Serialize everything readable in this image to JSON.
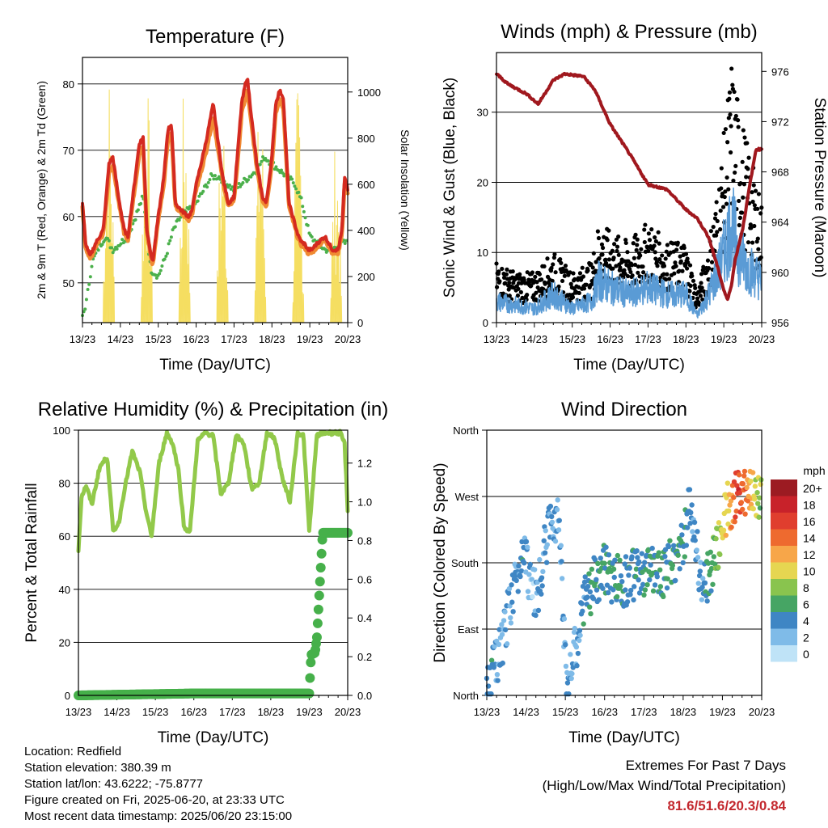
{
  "x_ticks": [
    "13/23",
    "14/23",
    "15/23",
    "16/23",
    "17/23",
    "18/23",
    "19/23",
    "20/23"
  ],
  "chart_data": [
    {
      "id": "temperature",
      "type": "line",
      "title": "Temperature (F)",
      "xlabel": "Time (Day/UTC)",
      "ylabel": "2m & 9m T (Red, Orange) & 2m Td (Green)",
      "y2label": "Solar Insolation (Yellow)",
      "ylim": [
        44,
        84
      ],
      "yticks": [
        50,
        60,
        70,
        80
      ],
      "y2lim": [
        0,
        1150
      ],
      "y2ticks": [
        0,
        200,
        400,
        600,
        800,
        1000
      ],
      "colors": {
        "t2m": "#d42a20",
        "t9m": "#f08a33",
        "td": "#4bb04b",
        "solar": "#f5de61"
      },
      "series": [
        {
          "key": "t2m",
          "x": [
            0,
            0.08,
            0.2,
            0.35,
            0.55,
            0.7,
            0.8,
            0.95,
            1.1,
            1.2,
            1.35,
            1.5,
            1.6,
            1.7,
            1.85,
            2.0,
            2.15,
            2.25,
            2.35,
            2.45,
            2.6,
            2.8,
            2.9,
            2.97,
            3.05,
            3.25,
            3.45,
            3.7,
            3.85,
            4.0,
            4.1,
            4.2,
            4.3,
            4.35,
            4.5,
            4.6,
            4.75,
            4.85,
            5.0,
            5.1,
            5.2,
            5.3,
            5.45,
            5.55,
            5.7,
            5.8,
            5.85,
            5.95,
            6.05,
            6.2,
            6.4,
            6.6,
            6.75,
            6.85,
            6.92,
            7.0
          ],
          "values": [
            62,
            56,
            54,
            56,
            58,
            68,
            69,
            63,
            58,
            57,
            64,
            71,
            72,
            58,
            53,
            60,
            66,
            73,
            74,
            62,
            61,
            60,
            61,
            64,
            66,
            71,
            77,
            66,
            62,
            63,
            70,
            77,
            80,
            81,
            73,
            68,
            63,
            62,
            69,
            77,
            79,
            78,
            62,
            60,
            57,
            56,
            56,
            55,
            55,
            56,
            57,
            55,
            55,
            58,
            66,
            64
          ]
        },
        {
          "key": "t9m",
          "x": [
            0,
            0.08,
            0.2,
            0.35,
            0.55,
            0.7,
            0.8,
            0.95,
            1.1,
            1.2,
            1.35,
            1.5,
            1.6,
            1.7,
            1.85,
            2.0,
            2.15,
            2.25,
            2.35,
            2.45,
            2.6,
            2.8,
            2.9,
            2.97,
            3.05,
            3.25,
            3.45,
            3.7,
            3.85,
            4.0,
            4.1,
            4.2,
            4.3,
            4.35,
            4.5,
            4.6,
            4.75,
            4.85,
            5.0,
            5.1,
            5.2,
            5.3,
            5.45,
            5.55,
            5.7,
            5.8,
            5.85,
            5.95,
            6.05,
            6.2,
            6.4,
            6.6,
            6.75,
            6.85,
            6.92,
            7.0
          ],
          "values": [
            61.5,
            55.5,
            53.5,
            55.5,
            57.5,
            66.5,
            67.5,
            62.5,
            57.5,
            56.5,
            63,
            69.5,
            70.5,
            57.5,
            52.5,
            59.5,
            65,
            71.5,
            72.5,
            61.5,
            60.5,
            59.5,
            60.5,
            63.5,
            65,
            69.5,
            75,
            65.5,
            61.5,
            62.5,
            68.5,
            75.5,
            78,
            79,
            72,
            67.5,
            62.5,
            61.5,
            68,
            75.5,
            77.5,
            76.5,
            61.5,
            59.5,
            56.5,
            55.5,
            55.5,
            54.5,
            54.5,
            55.5,
            56.5,
            54.5,
            54.5,
            57.5,
            65,
            63.5
          ]
        },
        {
          "key": "td",
          "x": [
            0,
            0.1,
            0.25,
            0.4,
            0.6,
            0.8,
            1.0,
            1.2,
            1.4,
            1.6,
            1.8,
            2.0,
            2.2,
            2.4,
            2.6,
            2.8,
            3.0,
            3.2,
            3.4,
            3.6,
            3.8,
            4.0,
            4.2,
            4.4,
            4.6,
            4.8,
            5.0,
            5.2,
            5.4,
            5.6,
            5.8,
            6.0,
            6.2,
            6.4,
            6.6,
            6.8,
            7.0
          ],
          "values": [
            45,
            47,
            53,
            55,
            57,
            55,
            56,
            57,
            60,
            63,
            52,
            51,
            54,
            58,
            60,
            61,
            62,
            64,
            66,
            66,
            65,
            64,
            65,
            66,
            67,
            69,
            68,
            67,
            66,
            65,
            62,
            57,
            56,
            55,
            55,
            56,
            56
          ]
        },
        {
          "key": "solar",
          "days": [
            0,
            1,
            2,
            3,
            4,
            5,
            6
          ],
          "peaks": [
            1120,
            1090,
            1050,
            1000,
            1040,
            1060,
            820
          ]
        }
      ]
    },
    {
      "id": "winds",
      "type": "line",
      "title": "Winds (mph) & Pressure (mb)",
      "xlabel": "Time (Day/UTC)",
      "ylabel": "Sonic Wind & Gust (Blue, Black)",
      "y2label": "Station Pressure (Maroon)",
      "ylim": [
        0,
        38.5
      ],
      "yticks": [
        0,
        10,
        20,
        30
      ],
      "y2lim": [
        956,
        977.5
      ],
      "y2ticks": [
        956,
        960,
        964,
        968,
        972,
        976
      ],
      "colors": {
        "wind": "#5a9bd5",
        "gust": "#000000",
        "pressure": "#a0181e"
      },
      "series": [
        {
          "key": "wind",
          "x": [
            0,
            0.5,
            1.0,
            1.5,
            2.0,
            2.5,
            2.7,
            3.0,
            3.5,
            4.0,
            4.5,
            5.0,
            5.3,
            5.6,
            5.9,
            6.2,
            6.4,
            6.6,
            7.0
          ],
          "values": [
            3,
            2.5,
            2,
            4,
            2,
            3,
            6,
            5,
            4,
            5,
            4,
            4,
            1,
            4,
            8,
            14,
            10,
            8,
            6
          ]
        },
        {
          "key": "gust",
          "x": [
            0,
            0.5,
            1.0,
            1.5,
            2.0,
            2.5,
            2.7,
            3.0,
            3.5,
            4.0,
            4.5,
            5.0,
            5.3,
            5.6,
            5.9,
            6.2,
            6.4,
            6.6,
            7.0
          ],
          "values": [
            6,
            5,
            5,
            7,
            5,
            6,
            10,
            9,
            8,
            10,
            8,
            8,
            3,
            8,
            15,
            26,
            22,
            18,
            12
          ]
        },
        {
          "key": "pressure",
          "x": [
            0,
            0.3,
            0.8,
            1.1,
            1.5,
            1.8,
            2.3,
            2.6,
            3.0,
            3.5,
            4.0,
            4.5,
            5.0,
            5.3,
            5.6,
            5.8,
            6.0,
            6.1,
            6.2,
            6.3,
            6.5,
            6.7,
            6.85,
            7.0
          ],
          "values": [
            975.8,
            975,
            974.2,
            973.4,
            975.3,
            975.8,
            975.6,
            974.5,
            971.8,
            969.5,
            967,
            966.6,
            965,
            964.3,
            962.8,
            960.8,
            958.6,
            957.8,
            959,
            961,
            963.5,
            967.2,
            969.8,
            969.8
          ]
        }
      ]
    },
    {
      "id": "humidity",
      "type": "line",
      "title": "Relative Humidity (%) & Precipitation (in)",
      "xlabel": "Time (Day/UTC)",
      "ylabel": "Percent & Total Rainfall",
      "ylim": [
        0,
        100
      ],
      "yticks": [
        0,
        20,
        40,
        60,
        80,
        100
      ],
      "y2lim": [
        0,
        1.37
      ],
      "y2ticks": [
        0.0,
        0.2,
        0.4,
        0.6,
        0.8,
        1.0,
        1.2
      ],
      "colors": {
        "rh": "#92c94a",
        "precip": "#46b04a"
      },
      "series": [
        {
          "key": "rh",
          "x": [
            0,
            0.08,
            0.2,
            0.35,
            0.55,
            0.75,
            0.9,
            1.05,
            1.2,
            1.4,
            1.6,
            1.75,
            1.9,
            2.1,
            2.3,
            2.45,
            2.6,
            2.75,
            2.9,
            3.1,
            3.3,
            3.5,
            3.7,
            3.9,
            4.1,
            4.3,
            4.5,
            4.7,
            4.9,
            5.1,
            5.3,
            5.5,
            5.7,
            5.85,
            6.0,
            6.2,
            6.4,
            6.6,
            6.8,
            6.92,
            7.0
          ],
          "values": [
            55,
            75,
            79,
            72,
            86,
            90,
            62,
            65,
            78,
            92,
            84,
            70,
            60,
            88,
            99,
            95,
            85,
            63,
            62,
            96,
            99,
            98,
            76,
            80,
            98,
            95,
            78,
            80,
            99,
            97,
            82,
            73,
            99,
            98,
            62,
            98,
            99,
            99,
            99,
            95,
            70
          ]
        },
        {
          "key": "precip",
          "x": [
            0,
            3.0,
            6.0,
            6.05,
            6.15,
            6.2,
            6.35,
            6.5,
            7.0
          ],
          "values": [
            0,
            0.01,
            0.01,
            0.21,
            0.22,
            0.3,
            0.84,
            0.84,
            0.84
          ]
        }
      ]
    },
    {
      "id": "wind_direction",
      "type": "scatter",
      "title": "Wind Direction",
      "xlabel": "Time (Day/UTC)",
      "ylabel": "Direction (Colored By Speed)",
      "ylim": [
        0,
        360
      ],
      "ytick_labels": [
        "North",
        "East",
        "South",
        "West",
        "North"
      ],
      "ytick_values": [
        0,
        90,
        180,
        270,
        360
      ],
      "legend_title": "mph",
      "legend_placement": "right",
      "legend": [
        {
          "label": "20+",
          "color": "#9c1b22"
        },
        {
          "label": "18",
          "color": "#c8222a"
        },
        {
          "label": "16",
          "color": "#e03e2e"
        },
        {
          "label": "14",
          "color": "#ee6a2f"
        },
        {
          "label": "12",
          "color": "#f7a649"
        },
        {
          "label": "10",
          "color": "#e6d651"
        },
        {
          "label": "8",
          "color": "#89c44e"
        },
        {
          "label": "6",
          "color": "#46a564"
        },
        {
          "label": "4",
          "color": "#3f86c4"
        },
        {
          "label": "2",
          "color": "#7fbbe8"
        },
        {
          "label": "0",
          "color": "#bfe3f7"
        }
      ],
      "series": [
        {
          "name": "",
          "x": [
            0.05,
            0.15,
            0.25,
            0.35,
            0.5,
            0.6,
            0.8,
            0.95,
            1.1,
            1.3,
            1.5,
            1.7,
            1.85,
            2.0,
            2.1,
            2.3,
            2.5,
            2.8,
            3.0,
            3.2,
            3.5,
            3.8,
            4.0,
            4.2,
            4.5,
            4.8,
            5.0,
            5.2,
            5.5,
            5.7,
            5.9,
            6.0,
            6.2,
            6.4,
            6.6,
            6.8,
            6.95
          ],
          "direction": [
            15,
            30,
            45,
            60,
            95,
            130,
            165,
            215,
            150,
            135,
            210,
            240,
            250,
            35,
            25,
            70,
            130,
            160,
            170,
            160,
            155,
            165,
            160,
            175,
            165,
            185,
            210,
            260,
            140,
            170,
            200,
            240,
            260,
            275,
            280,
            278,
            270
          ],
          "speed": [
            4,
            4,
            3,
            3,
            3,
            3,
            4,
            4,
            2,
            3,
            3,
            3,
            2,
            3,
            3,
            3,
            4,
            5,
            5,
            5,
            5,
            5,
            5,
            5,
            5,
            5,
            5,
            4,
            3,
            6,
            8,
            10,
            12,
            16,
            14,
            10,
            8
          ]
        }
      ]
    }
  ],
  "footer": {
    "location": "Location: Redfield",
    "elevation": "Station elevation: 380.39 m",
    "latlon": "Station lat/lon: 43.6222; -75.8777",
    "created": "Figure created on Fri, 2025-06-20, at 23:33 UTC",
    "recent": "Most recent data timestamp: 2025/06/20 23:15:00",
    "extremes_title": "Extremes For Past 7 Days",
    "extremes_subtitle": "(High/Low/Max Wind/Total Precipitation)",
    "extremes_values": "81.6/51.6/20.3/0.84"
  }
}
